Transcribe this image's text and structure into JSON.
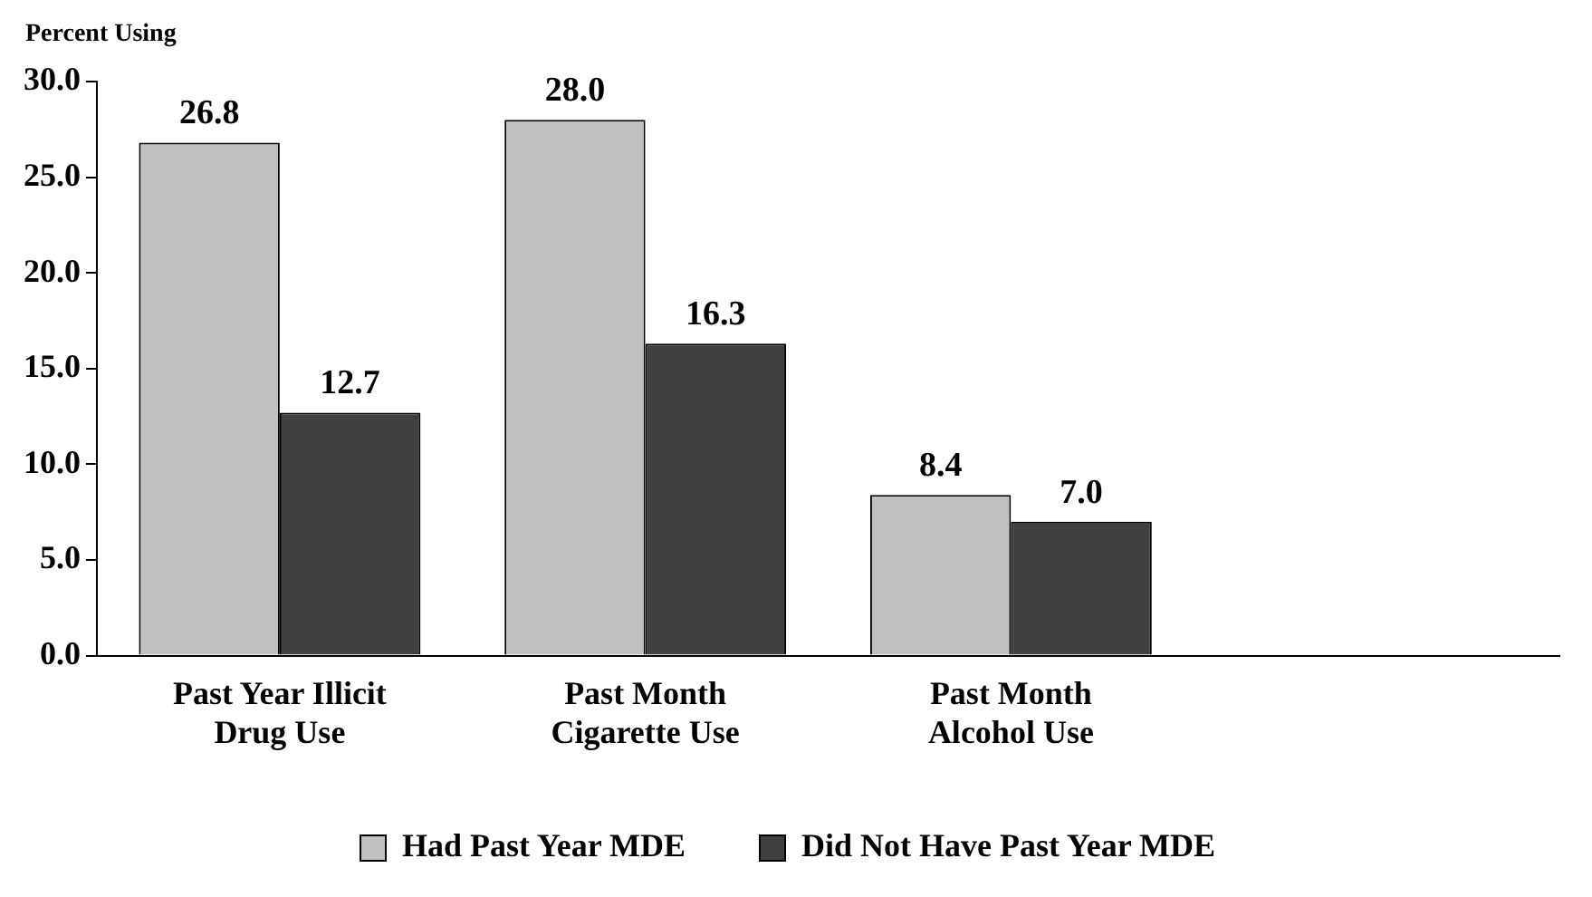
{
  "chart_data": {
    "type": "bar",
    "ylabel": "Percent Using",
    "categories": [
      "Past Year Illicit\nDrug Use",
      "Past Month\nCigarette Use",
      "Past Month\nAlcohol Use",
      null
    ],
    "series": [
      {
        "name": "Had Past Year MDE",
        "color": "#c0c0c0",
        "values": [
          26.8,
          28.0,
          8.4,
          null
        ],
        "value_labels": [
          "26.8",
          "28.0",
          "8.4",
          null
        ]
      },
      {
        "name": "Did Not Have Past Year MDE",
        "color": "#404040",
        "values": [
          12.7,
          16.3,
          7.0,
          null
        ],
        "value_labels": [
          "12.7",
          "16.3",
          "7.0",
          null
        ]
      }
    ],
    "ylim": [
      0,
      30
    ],
    "yticks": [
      {
        "value": 0,
        "label": "0.0"
      },
      {
        "value": 5,
        "label": "5.0"
      },
      {
        "value": 10,
        "label": "10.0"
      },
      {
        "value": 15,
        "label": "15.0"
      },
      {
        "value": 20,
        "label": "20.0"
      },
      {
        "value": 25,
        "label": "25.0"
      },
      {
        "value": 30,
        "label": "30.0"
      }
    ],
    "grid": false,
    "legend": "bottom"
  }
}
